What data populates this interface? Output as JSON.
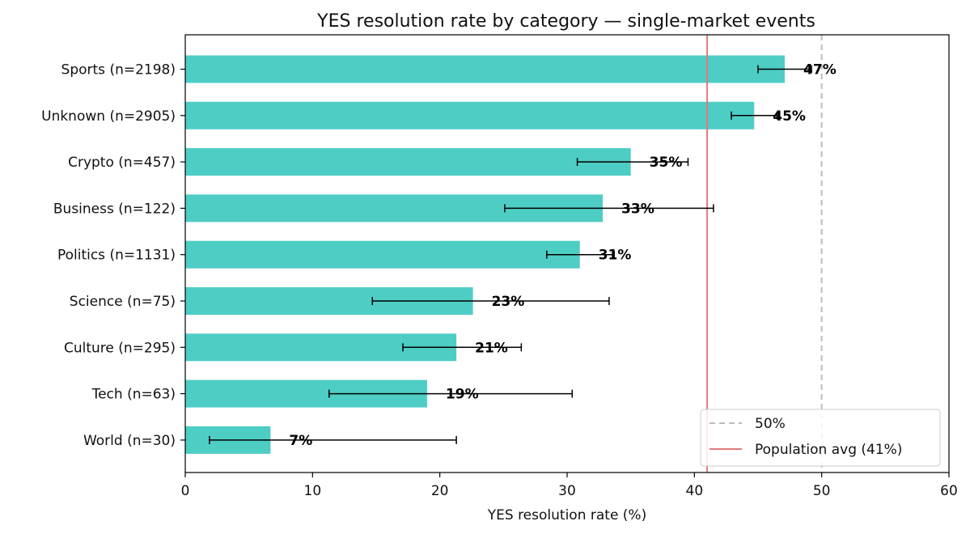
{
  "chart_data": {
    "type": "bar",
    "orientation": "horizontal",
    "title": "YES resolution rate by category — single-market events",
    "xlabel": "YES resolution rate (%)",
    "ylabel": "",
    "xlim": [
      0,
      60
    ],
    "xticks": [
      "0",
      "10",
      "20",
      "30",
      "40",
      "50",
      "60"
    ],
    "categories": [
      "Sports (n=2198)",
      "Unknown (n=2905)",
      "Crypto (n=457)",
      "Business (n=122)",
      "Politics (n=1131)",
      "Science (n=75)",
      "Culture (n=295)",
      "Tech (n=63)",
      "World (n=30)"
    ],
    "values": [
      47.1,
      44.7,
      35.0,
      32.8,
      31.0,
      22.6,
      21.3,
      19.0,
      6.7
    ],
    "error_low": [
      45.0,
      42.9,
      30.8,
      25.1,
      28.4,
      14.7,
      17.1,
      11.3,
      1.9
    ],
    "error_high": [
      49.2,
      46.5,
      39.5,
      41.5,
      33.7,
      33.3,
      26.4,
      30.4,
      21.3
    ],
    "data_labels": [
      "47%",
      "45%",
      "35%",
      "33%",
      "31%",
      "23%",
      "21%",
      "19%",
      "7%"
    ],
    "bar_color": "#4ecdc4",
    "reference_lines": [
      {
        "name": "50%",
        "value": 50,
        "color": "#bbbbbb",
        "style": "dashed"
      },
      {
        "name": "Population avg (41%)",
        "value": 41,
        "color": "#e07b7b",
        "style": "solid"
      }
    ],
    "legend": {
      "position": "bottom-right",
      "entries": [
        "50%",
        "Population avg (41%)"
      ]
    }
  }
}
